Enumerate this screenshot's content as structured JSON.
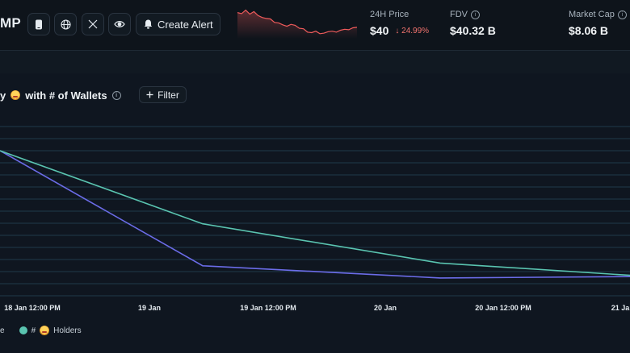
{
  "header": {
    "ticker_partial": "MP",
    "icons": [
      "phone-icon",
      "globe-icon",
      "x-twitter-icon",
      "eye-icon"
    ],
    "create_alert_label": "Create Alert",
    "stats": [
      {
        "label": "24H Price",
        "value": "$40",
        "change": "↓ 24.99%"
      },
      {
        "label": "FDV",
        "value": "$40.32 B"
      },
      {
        "label": "Market Cap",
        "value": "$8.06 B"
      }
    ],
    "sparkline": [
      50,
      48,
      55,
      47,
      52,
      44,
      40,
      38,
      37,
      30,
      29,
      25,
      22,
      26,
      24,
      18,
      17,
      10,
      9,
      12,
      7,
      8,
      11,
      12,
      10,
      14,
      16,
      15,
      19,
      20
    ],
    "colors": {
      "sparkline": "#f05b5b",
      "down": "#f0736e"
    }
  },
  "chart": {
    "title_prefix": "y",
    "title_suffix": "with # of Wallets",
    "filter_label": "Filter",
    "legend": [
      {
        "label": "e",
        "color": "#6b6ce8"
      },
      {
        "label": "Holders",
        "prefix": "#",
        "color": "#5ac4b0"
      }
    ]
  },
  "chart_data": {
    "type": "line",
    "x_tick_labels": [
      "18 Jan 12:00 PM",
      "19 Jan",
      "19 Jan 12:00 PM",
      "20 Jan",
      "20 Jan 12:00 PM",
      "21 Ja"
    ],
    "series": [
      {
        "name": "e",
        "color": "#6b6ce8",
        "points": [
          [
            0,
            100
          ],
          [
            1,
            15
          ],
          [
            2,
            6
          ],
          [
            3,
            7
          ]
        ]
      },
      {
        "name": "# Holders",
        "color": "#5ac4b0",
        "points": [
          [
            0,
            100
          ],
          [
            1,
            46
          ],
          [
            2,
            17
          ],
          [
            3,
            8
          ]
        ]
      }
    ],
    "grid": true
  }
}
